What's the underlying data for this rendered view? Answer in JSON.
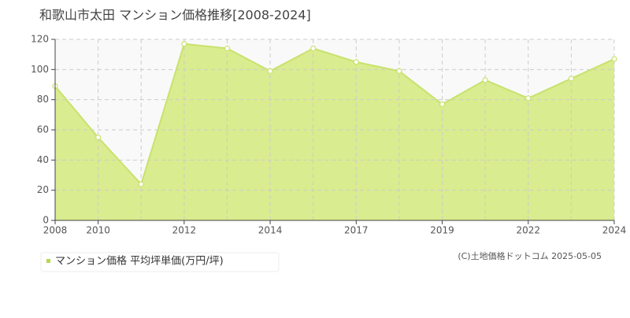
{
  "chart_data": {
    "type": "area",
    "title": "和歌山市太田 マンション価格推移[2008-2024]",
    "categories": [
      "2008",
      "2010",
      null,
      "2012",
      null,
      "2014",
      null,
      "2017",
      null,
      "2019",
      null,
      "2022",
      null,
      "2024"
    ],
    "series": [
      {
        "name": "マンション価格 平均坪単価(万円/坪)",
        "color": "#c8e26e",
        "values": [
          89,
          55,
          24,
          117,
          114,
          99,
          114,
          105,
          99,
          77,
          93,
          81,
          94,
          107
        ]
      }
    ],
    "ylim": [
      0,
      120
    ],
    "yticks": [
      0,
      20,
      40,
      60,
      80,
      100,
      120
    ],
    "grid": true,
    "source": "(C)土地価格ドットコム 2025-05-05"
  }
}
